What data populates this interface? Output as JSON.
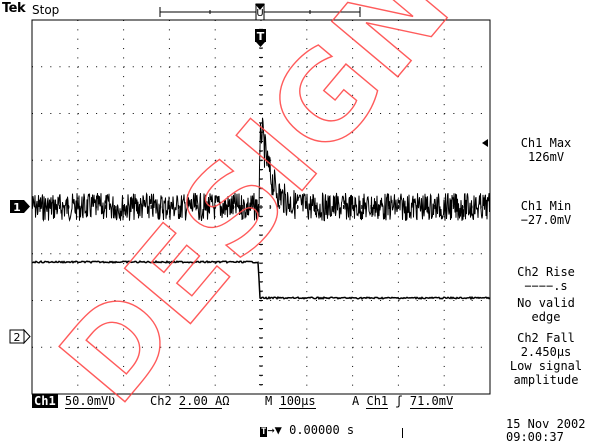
{
  "header": {
    "brand": "Tek",
    "state": "Stop"
  },
  "measurements": [
    {
      "label": "Ch1 Max",
      "value": "126mV"
    },
    {
      "label": "Ch1 Min",
      "value": "−27.0mV"
    },
    {
      "label": "Ch2 Rise",
      "value": "−−−−.s",
      "note1": "No valid",
      "note2": "edge"
    },
    {
      "label": "Ch2 Fall",
      "value": "2.450µs",
      "note1": "Low signal",
      "note2": "amplitude"
    }
  ],
  "status_bar": {
    "ch1_name": "Ch1",
    "ch1_scale": "50.0mV",
    "ch1_coupling": "Ʋ",
    "ch2_name": "Ch2",
    "ch2_scale": "2.00 A",
    "ch2_coupling": "Ω",
    "timebase_label": "M",
    "timebase_value": "100µs",
    "trigger_mode": "A",
    "trigger_source": "Ch1",
    "trigger_slope": "ʃ",
    "trigger_level": "71.0mV"
  },
  "footer": {
    "position": "0.00000 s",
    "date": "15 Nov 2002",
    "time": "09:00:37"
  },
  "markers": {
    "ch1": "1",
    "ch2": "2",
    "trigger": "T"
  },
  "watermark": "DESIGN",
  "colors": {
    "trace": "#000000",
    "grid": "#000000",
    "watermark": "#ff4a4a"
  }
}
